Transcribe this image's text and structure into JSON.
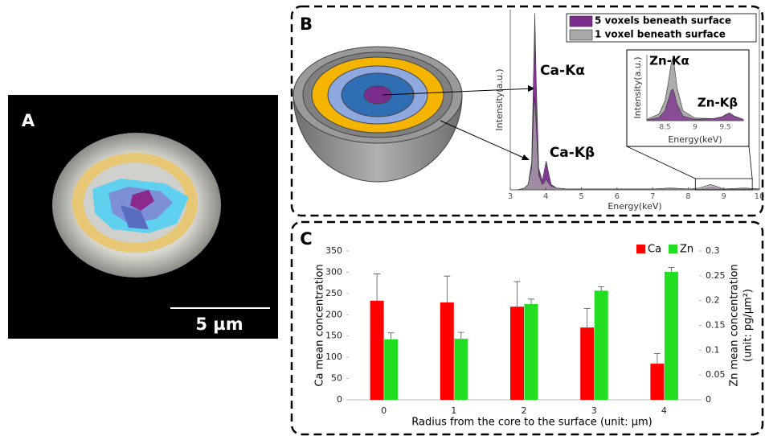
{
  "panel_labels": [
    "A",
    "B",
    "C"
  ],
  "scale_bar": "5 µm",
  "chart_data": [
    {
      "type": "area",
      "xlabel": "Energy(keV)",
      "ylabel": "Intensity(a.u.)",
      "x": [
        3.0,
        3.2,
        3.4,
        3.5,
        3.6,
        3.65,
        3.69,
        3.73,
        3.8,
        3.9,
        3.95,
        4.01,
        4.07,
        4.15,
        4.3,
        4.6,
        5.0,
        6.0,
        7.0,
        7.5,
        8.0,
        8.3,
        8.63,
        9.0,
        9.57,
        10.0
      ],
      "series": [
        {
          "name": "5 voxels beneath surface",
          "color": "#7b2d8e",
          "values": [
            0,
            0,
            0.01,
            0.03,
            0.15,
            0.6,
            0.98,
            0.6,
            0.12,
            0.05,
            0.1,
            0.16,
            0.1,
            0.03,
            0.01,
            0.005,
            0.005,
            0.005,
            0.005,
            0.01,
            0.005,
            0.005,
            0.015,
            0.005,
            0.01,
            0.005
          ]
        },
        {
          "name": "1 voxel beneath surface",
          "color": "#a8a8a8",
          "values": [
            0,
            0,
            0.01,
            0.03,
            0.12,
            0.4,
            0.52,
            0.35,
            0.08,
            0.03,
            0.04,
            0.06,
            0.04,
            0.02,
            0.01,
            0.005,
            0.005,
            0.005,
            0.005,
            0.01,
            0.005,
            0.01,
            0.03,
            0.005,
            0.01,
            0.005
          ]
        }
      ],
      "xlim": [
        3,
        10
      ],
      "xticks": [
        3,
        4,
        5,
        6,
        7,
        8,
        9,
        10
      ],
      "ylim": [
        0,
        1
      ],
      "annotations": [
        "Ca-Kα",
        "Ca-Kβ"
      ]
    },
    {
      "type": "area",
      "xlabel": "Energy(keV)",
      "ylabel": "Intensity(a.u.)",
      "x": [
        8.2,
        8.4,
        8.5,
        8.55,
        8.6,
        8.63,
        8.66,
        8.7,
        8.8,
        9.0,
        9.3,
        9.45,
        9.5,
        9.57,
        9.65,
        9.8
      ],
      "series": [
        {
          "color": "#a8a8a8",
          "values": [
            0.02,
            0.1,
            0.3,
            0.55,
            0.85,
            0.95,
            0.8,
            0.5,
            0.15,
            0.04,
            0.03,
            0.05,
            0.08,
            0.1,
            0.06,
            0.02
          ]
        },
        {
          "color": "#7b2d8e",
          "values": [
            0.01,
            0.05,
            0.15,
            0.3,
            0.45,
            0.48,
            0.4,
            0.25,
            0.07,
            0.02,
            0.03,
            0.06,
            0.09,
            0.12,
            0.07,
            0.02
          ]
        }
      ],
      "xlim": [
        8.2,
        9.8
      ],
      "xticks": [
        8.5,
        9,
        9.5
      ],
      "ylim": [
        0,
        1
      ],
      "annotations": [
        "Zn-Kα",
        "Zn-Kβ"
      ]
    },
    {
      "type": "bar",
      "xlabel": "Radius from the core to the surface (unit: µm)",
      "ylabel": "Ca mean concentration",
      "y2label": [
        "Zn mean concentration",
        "(unit: pg/µm²)"
      ],
      "categories": [
        "0",
        "1",
        "2",
        "3",
        "4"
      ],
      "series": [
        {
          "name": "Ca",
          "color": "#ff0000",
          "values": [
            233,
            229,
            219,
            170,
            85
          ],
          "errors": [
            63,
            62,
            59,
            45,
            24
          ]
        },
        {
          "name": "Zn",
          "color": "#22dd22",
          "axis": "y2",
          "values": [
            0.122,
            0.123,
            0.193,
            0.22,
            0.258
          ],
          "errors": [
            0.013,
            0.013,
            0.01,
            0.008,
            0.009
          ]
        }
      ],
      "ylim": [
        0,
        350
      ],
      "yticks": [
        0,
        50,
        100,
        150,
        200,
        250,
        300,
        350
      ],
      "y2lim": [
        0,
        0.3
      ],
      "y2ticks": [
        0,
        0.05,
        0.1,
        0.15,
        0.2,
        0.25,
        0.3
      ]
    }
  ]
}
